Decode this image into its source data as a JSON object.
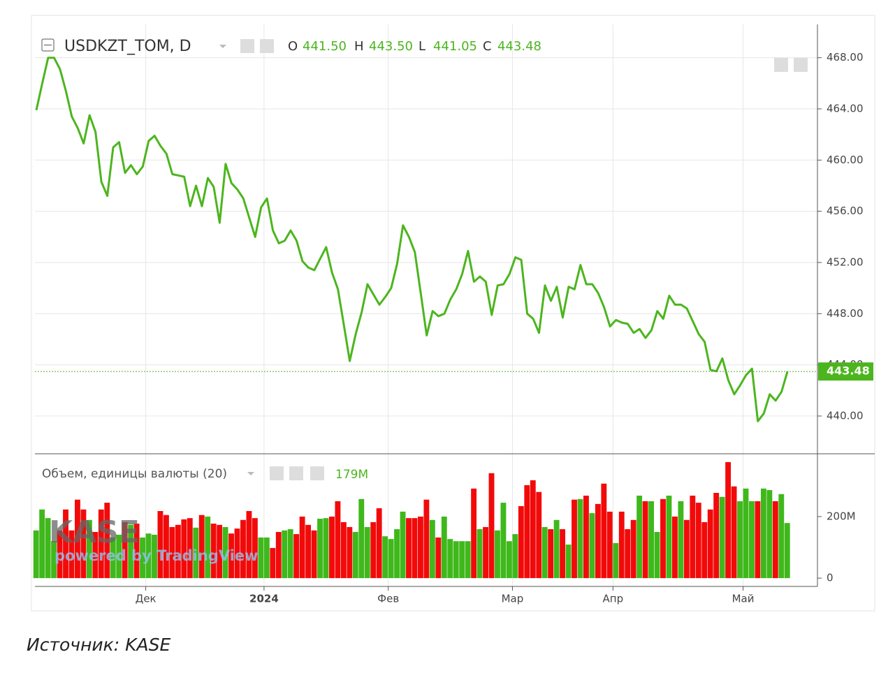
{
  "chart_data": [
    {
      "type": "line",
      "title": "USDKZT_TOM, D",
      "ohlc": [
        {
          "key": "O",
          "text": "441.50"
        },
        {
          "key": "H",
          "text": "443.50"
        },
        {
          "key": "L",
          "text": "441.05"
        },
        {
          "key": "C",
          "text": "443.48"
        }
      ],
      "series": [
        {
          "name": "USDKZT_TOM",
          "color": "#4cb51e",
          "values": [
            463.9,
            466.0,
            468.0,
            468.0,
            467.1,
            465.4,
            463.4,
            462.5,
            461.3,
            463.5,
            462.2,
            458.3,
            457.2,
            461.0,
            461.4,
            459.0,
            459.6,
            458.9,
            459.5,
            461.5,
            461.9,
            461.1,
            460.5,
            458.9,
            458.8,
            458.7,
            456.4,
            458.0,
            456.4,
            458.6,
            457.9,
            455.1,
            459.7,
            458.2,
            457.7,
            457.0,
            455.5,
            454.0,
            456.3,
            457.0,
            454.5,
            453.5,
            453.7,
            454.5,
            453.7,
            452.1,
            451.6,
            451.4,
            452.3,
            453.2,
            451.2,
            449.9,
            447.1,
            444.3,
            446.4,
            448.1,
            450.3,
            449.5,
            448.7,
            449.3,
            450.0,
            451.9,
            454.9,
            454.0,
            452.8,
            449.6,
            446.3,
            448.2,
            447.8,
            448.0,
            449.1,
            449.9,
            451.1,
            452.9,
            450.5,
            450.9,
            450.5,
            447.9,
            450.2,
            450.3,
            451.1,
            452.4,
            452.2,
            448.0,
            447.6,
            446.5,
            450.2,
            449.0,
            450.1,
            447.7,
            450.1,
            449.9,
            451.8,
            450.3,
            450.3,
            449.6,
            448.5,
            447.0,
            447.5,
            447.3,
            447.2,
            446.5,
            446.8,
            446.1,
            446.7,
            448.2,
            447.6,
            449.4,
            448.7,
            448.7,
            448.4,
            447.4,
            446.4,
            445.8,
            443.6,
            443.5,
            444.5,
            442.8,
            441.7,
            442.4,
            443.2,
            443.7,
            439.6,
            440.2,
            441.7,
            441.2,
            441.9,
            443.48
          ]
        }
      ],
      "last": {
        "value": 443.48,
        "label": "443.48"
      },
      "ylim": [
        437.05,
        470.6
      ],
      "yticks": [
        {
          "value": 440,
          "label": "440.00"
        },
        {
          "value": 444,
          "label": "444.00"
        },
        {
          "value": 448,
          "label": "448.00"
        },
        {
          "value": 452,
          "label": "452.00"
        },
        {
          "value": 456,
          "label": "456.00"
        },
        {
          "value": 460,
          "label": "460.00"
        },
        {
          "value": 464,
          "label": "464.00"
        },
        {
          "value": 468,
          "label": "468.00"
        }
      ],
      "grid": true
    },
    {
      "type": "bar",
      "title": "Объем, единицы валюты (20)",
      "legend_value": "179M",
      "categories": [
        null,
        null,
        null,
        null,
        null,
        null,
        null,
        null,
        null,
        null,
        null,
        null,
        null,
        null,
        null,
        null,
        null,
        null,
        null,
        "Дек",
        null,
        null,
        null,
        null,
        null,
        null,
        null,
        null,
        null,
        null,
        null,
        null,
        null,
        null,
        null,
        null,
        null,
        null,
        null,
        "2024",
        null,
        null,
        null,
        null,
        null,
        null,
        null,
        null,
        null,
        null,
        null,
        null,
        null,
        null,
        null,
        null,
        null,
        null,
        null,
        null,
        "Фев",
        null,
        null,
        null,
        null,
        null,
        null,
        null,
        null,
        null,
        null,
        null,
        null,
        null,
        null,
        null,
        null,
        null,
        null,
        null,
        null,
        "Мар",
        null,
        null,
        null,
        null,
        null,
        null,
        null,
        null,
        null,
        null,
        null,
        null,
        null,
        null,
        null,
        null,
        "Апр",
        null,
        null,
        null,
        null,
        null,
        null,
        null,
        null,
        null,
        null,
        null,
        null,
        null,
        null,
        null,
        null,
        null,
        null,
        null,
        null,
        null,
        "Май",
        null,
        null,
        null,
        null,
        null,
        null,
        null
      ],
      "values": [
        155,
        223,
        195,
        120,
        155,
        223,
        155,
        255,
        223,
        189,
        150,
        223,
        245,
        132,
        141,
        182,
        173,
        177,
        132,
        145,
        141,
        218,
        205,
        166,
        173,
        191,
        195,
        164,
        205,
        200,
        177,
        173,
        166,
        145,
        161,
        189,
        218,
        195,
        132,
        132,
        98,
        150,
        155,
        159,
        143,
        200,
        173,
        155,
        193,
        195,
        200,
        250,
        182,
        166,
        150,
        257,
        166,
        182,
        227,
        136,
        127,
        159,
        216,
        195,
        195,
        200,
        255,
        189,
        132,
        200,
        127,
        120,
        120,
        120,
        291,
        159,
        166,
        341,
        155,
        245,
        120,
        143,
        234,
        302,
        318,
        280,
        166,
        159,
        189,
        159,
        109,
        255,
        257,
        268,
        211,
        241,
        307,
        216,
        114,
        216,
        159,
        189,
        268,
        250,
        250,
        150,
        257,
        268,
        200,
        250,
        189,
        268,
        245,
        182,
        223,
        277,
        264,
        377,
        298,
        250,
        291,
        250,
        250,
        291,
        286,
        250,
        273,
        179
      ],
      "up_color": "#3fb81b",
      "down_color": "#f20a0a",
      "ylim": [
        -27,
        404
      ],
      "yticks": [
        0,
        {
          "value": 200,
          "label": "200M"
        }
      ]
    }
  ],
  "watermark": [
    "KASE",
    "powered by TradingView"
  ],
  "footer": "Источник: KASE"
}
